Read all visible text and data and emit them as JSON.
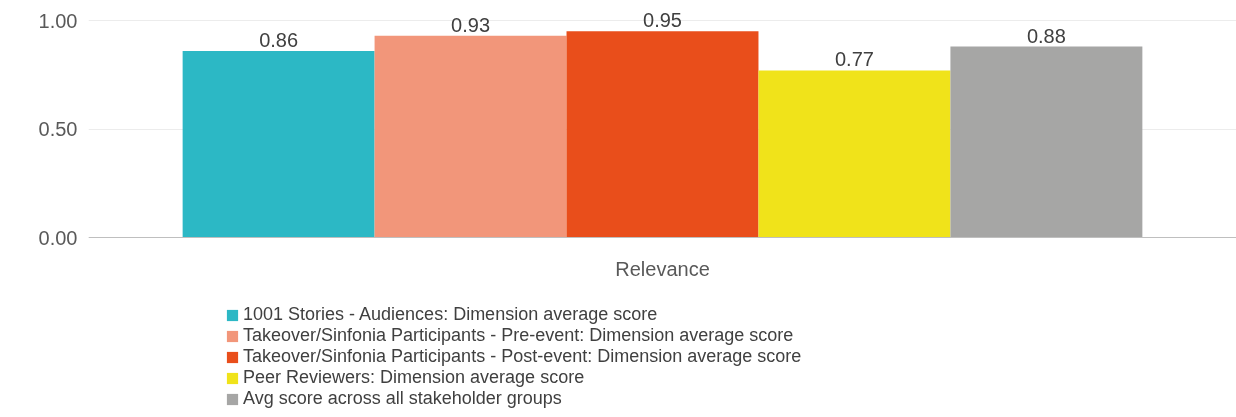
{
  "chart_data": {
    "type": "bar",
    "categories": [
      "Relevance"
    ],
    "series": [
      {
        "name": "1001 Stories - Audiences: Dimension average score",
        "color": "#2cb8c5",
        "values": [
          0.86
        ]
      },
      {
        "name": "Takeover/Sinfonia Participants - Pre-event: Dimension average score",
        "color": "#f2967a",
        "values": [
          0.93
        ]
      },
      {
        "name": "Takeover/Sinfonia Participants - Post-event: Dimension average score",
        "color": "#e94e1b",
        "values": [
          0.95
        ]
      },
      {
        "name": "Peer Reviewers: Dimension average score",
        "color": "#f0e31a",
        "values": [
          0.77
        ]
      },
      {
        "name": "Avg score across all stakeholder groups",
        "color": "#a6a6a5",
        "values": [
          0.88
        ]
      }
    ],
    "ylim": [
      0,
      1
    ],
    "yticks": [
      {
        "value": 0,
        "label": "0.00"
      },
      {
        "value": 0.5,
        "label": "0.50"
      },
      {
        "value": 1,
        "label": "1.00"
      }
    ],
    "data_labels": true,
    "grid": "y",
    "legend": "bottom"
  }
}
